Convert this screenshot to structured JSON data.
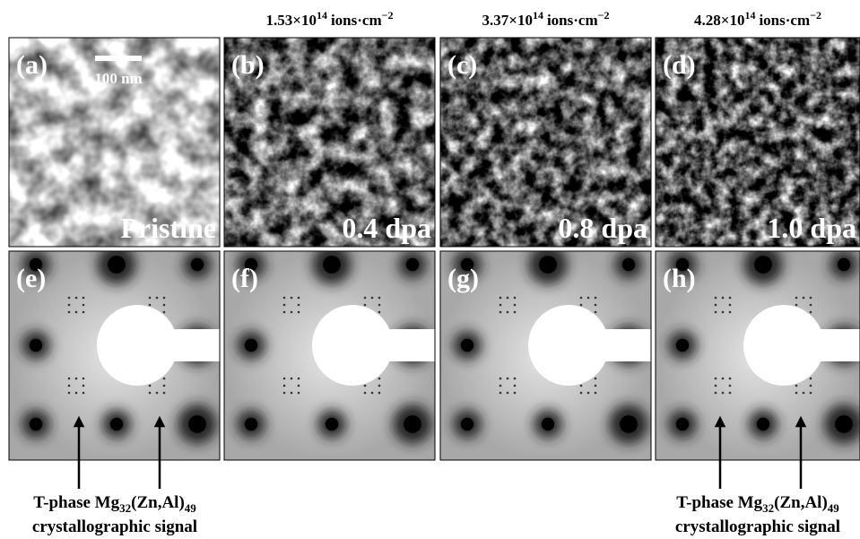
{
  "header_doses": [
    {
      "value": "1.53×10",
      "exponent": "14",
      "unit": "ions·cm",
      "unit_exponent": "−2"
    },
    {
      "value": "3.37×10",
      "exponent": "14",
      "unit": "ions·cm",
      "unit_exponent": "−2"
    },
    {
      "value": "4.28×10",
      "exponent": "14",
      "unit": "ions·cm",
      "unit_exponent": "−2"
    }
  ],
  "scale_bar": "100 nm",
  "panels": [
    {
      "label": "(a)",
      "caption": "Pristine"
    },
    {
      "label": "(b)",
      "caption": "0.4 dpa"
    },
    {
      "label": "(c)",
      "caption": "0.8 dpa"
    },
    {
      "label": "(d)",
      "caption": "1.0 dpa"
    },
    {
      "label": "(e)"
    },
    {
      "label": "(f)"
    },
    {
      "label": "(g)"
    },
    {
      "label": "(h)"
    }
  ],
  "annotations": [
    {
      "phase": "T-phase Mg",
      "sub1": "32",
      "formula": "(Zn,Al)",
      "sub2": "49",
      "signal": "crystallographic signal"
    },
    {
      "phase": "T-phase Mg",
      "sub1": "32",
      "formula": "(Zn,Al)",
      "sub2": "49",
      "signal": "crystallographic signal"
    }
  ]
}
